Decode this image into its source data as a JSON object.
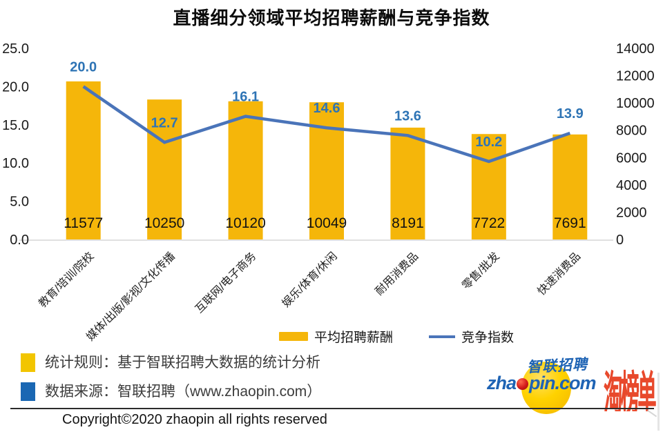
{
  "title": "直播细分领域平均招聘薪酬与竞争指数",
  "chart_data": {
    "type": "bar+line",
    "title": "直播细分领域平均招聘薪酬与竞争指数",
    "categories": [
      "教育/培训/院校",
      "媒体/出版/影视/文化传播",
      "互联网/电子商务",
      "娱乐/体育/休闲",
      "耐用消费品",
      "零售/批发",
      "快速消费品"
    ],
    "series": [
      {
        "name": "平均招聘薪酬",
        "type": "bar",
        "axis": "right",
        "color": "#F5B60A",
        "label_color": "#131313",
        "values": [
          11577,
          10250,
          10120,
          10049,
          8191,
          7722,
          7691
        ]
      },
      {
        "name": "竞争指数",
        "type": "line",
        "axis": "left",
        "color": "#4A74B9",
        "label_color": "#2E74B5",
        "values": [
          20.0,
          12.7,
          16.1,
          14.6,
          13.6,
          10.2,
          13.9
        ]
      }
    ],
    "axes": {
      "left": {
        "min": 0,
        "max": 25,
        "step": 5,
        "decimals": 1
      },
      "right": {
        "min": 0,
        "max": 14000,
        "step": 2000,
        "decimals": 0
      }
    },
    "grid": false,
    "legend_position": "bottom"
  },
  "notes": [
    {
      "swatch": "#F2C500",
      "text": "统计规则：基于智联招聘大数据的统计分析"
    },
    {
      "swatch": "#1A67B3",
      "text": "数据来源：智联招聘（www.zhaopin.com）"
    }
  ],
  "copyright": "Copyright©2020 zhaopin all rights reserved",
  "logos": {
    "zhaopin_cn": "智联招聘",
    "zhaopin_en_pre": "zha",
    "zhaopin_en_post": "pin.com",
    "taobangdan": "淘榜单"
  }
}
